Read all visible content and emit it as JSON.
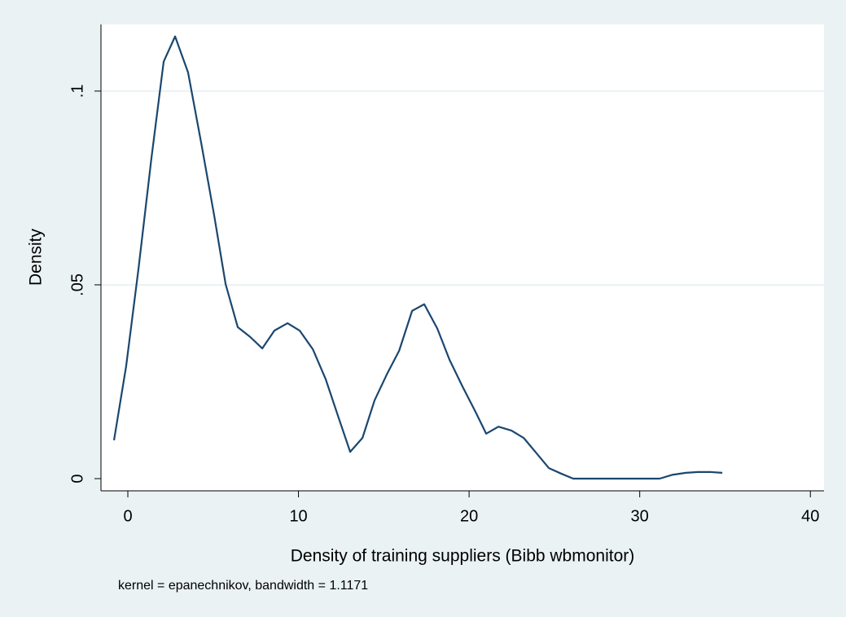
{
  "chart_data": {
    "type": "line",
    "ylabel": "Density",
    "xlabel": "Density of training suppliers (Bibb wbmonitor)",
    "note": "kernel = epanechnikov, bandwidth = 1.1171",
    "xlim": [
      -1.575,
      40.8
    ],
    "ylim": [
      -0.00315,
      0.1172
    ],
    "xticks": [
      0,
      10,
      20,
      30,
      40
    ],
    "yticks": [
      0,
      {
        "value": 0.05,
        "label": ".05"
      },
      {
        "value": 0.1,
        "label": ".1"
      }
    ],
    "grid": true,
    "x": [
      -0.81,
      -0.1,
      0.62,
      1.38,
      2.1,
      2.77,
      3.53,
      4.3,
      5.06,
      5.73,
      6.44,
      7.16,
      7.88,
      8.59,
      9.36,
      10.07,
      10.84,
      11.6,
      12.3,
      13.03,
      13.75,
      14.46,
      15.18,
      15.9,
      16.66,
      17.37,
      18.14,
      18.85,
      19.62,
      20.38,
      21.0,
      21.72,
      22.48,
      23.2,
      23.96,
      24.68,
      25.39,
      26.1,
      26.8,
      27.5,
      28.3,
      29.0,
      29.7,
      30.4,
      31.17,
      31.93,
      32.7,
      33.41,
      34.18,
      34.84
    ],
    "series": [
      {
        "color": "#1a476f",
        "values": [
          0.0099,
          0.029,
          0.054,
          0.0826,
          0.1076,
          0.1141,
          0.1048,
          0.0866,
          0.0679,
          0.0502,
          0.0391,
          0.0366,
          0.0336,
          0.0382,
          0.0401,
          0.0382,
          0.0334,
          0.0256,
          0.0164,
          0.0069,
          0.0105,
          0.0202,
          0.0269,
          0.033,
          0.0433,
          0.045,
          0.0387,
          0.0307,
          0.0237,
          0.0172,
          0.0116,
          0.0134,
          0.0124,
          0.0105,
          0.0065,
          0.0027,
          0.0013,
          0,
          0,
          0,
          0,
          0,
          0,
          0,
          0,
          0.001,
          0.0015,
          0.0017,
          0.0017,
          0.0015
        ]
      }
    ]
  }
}
